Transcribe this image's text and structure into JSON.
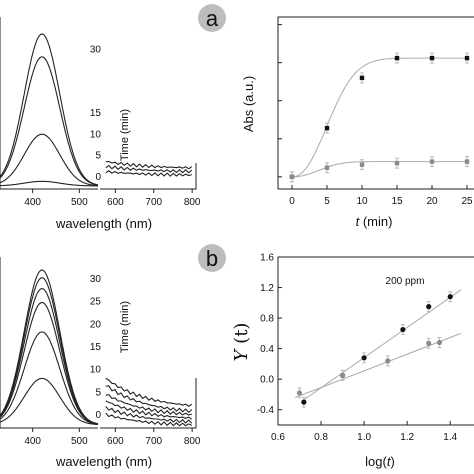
{
  "panel_labels": {
    "a": "a",
    "b": "b"
  },
  "colors": {
    "dark_series": "#111111",
    "grey_series": "#8a8a8a",
    "fit_line": "#aaaaaa",
    "badge": "#bdbdbd"
  },
  "chart_data": [
    {
      "id": "a-spectra",
      "type": "line",
      "xlabel": "wavelength (nm)",
      "xlim": [
        330,
        540
      ],
      "xticks": [
        400,
        500
      ],
      "ylim": [
        0,
        1
      ],
      "peak_wavelength": 420,
      "series": [
        {
          "amplitude": 1.0
        },
        {
          "amplitude": 0.85
        },
        {
          "amplitude": 0.34
        },
        {
          "amplitude": 0.03
        }
      ]
    },
    {
      "id": "a-inset",
      "type": "line",
      "xlim": [
        560,
        810
      ],
      "xticks": [
        600,
        700,
        800
      ],
      "ylabel": "Time (min)",
      "ylim": [
        -3,
        33
      ],
      "yticks": [
        0,
        5,
        10,
        15,
        20,
        25,
        30
      ],
      "ytick_labels": [
        "0",
        "5",
        "10",
        "15",
        "",
        "",
        "30"
      ],
      "series": [
        {
          "start": 3.5,
          "end": 1.8
        },
        {
          "start": 2.3,
          "end": 1.0
        },
        {
          "start": 1.1,
          "end": 0.2
        }
      ]
    },
    {
      "id": "a-kinetics",
      "type": "scatter",
      "xlabel_italic": "t",
      "xlabel_unit": " (min)",
      "ylabel": "Abs (a.u.)",
      "xlim": [
        -2,
        26
      ],
      "xticks": [
        0,
        5,
        10,
        15,
        20,
        25
      ],
      "xtick_labels": [
        "0",
        "5",
        "10",
        "15",
        "20",
        "25"
      ],
      "ylim": [
        0.02,
        1.15
      ],
      "yticks": [
        0.1,
        0.35,
        0.6,
        0.85,
        1.1
      ],
      "series": [
        {
          "x": [
            0,
            5,
            10,
            15,
            20,
            25
          ],
          "y": [
            0.1,
            0.42,
            0.75,
            0.88,
            0.88,
            0.88
          ],
          "style": "dark"
        },
        {
          "x": [
            0,
            5,
            10,
            15,
            20,
            25
          ],
          "y": [
            0.1,
            0.16,
            0.18,
            0.19,
            0.2,
            0.2
          ],
          "style": "grey"
        }
      ]
    },
    {
      "id": "b-spectra",
      "type": "line",
      "xlabel": "wavelength (nm)",
      "xlim": [
        330,
        540
      ],
      "xticks": [
        400,
        500
      ],
      "ylim": [
        0,
        1
      ],
      "peak_wavelength": 420,
      "series": [
        {
          "amplitude": 1.0
        },
        {
          "amplitude": 0.95
        },
        {
          "amplitude": 0.88
        },
        {
          "amplitude": 0.79
        },
        {
          "amplitude": 0.6
        },
        {
          "amplitude": 0.3
        }
      ]
    },
    {
      "id": "b-inset",
      "type": "line",
      "xlim": [
        560,
        810
      ],
      "xticks": [
        600,
        700,
        800
      ],
      "ylabel": "Time (min)",
      "ylim": [
        -3,
        33
      ],
      "yticks": [
        0,
        5,
        10,
        15,
        20,
        25,
        30
      ],
      "ytick_labels": [
        "0",
        "5",
        "10",
        "15",
        "20",
        "25",
        "30"
      ],
      "series": [
        {
          "start": 8.0,
          "end": 1.2
        },
        {
          "start": 6.5,
          "end": 0.0
        },
        {
          "start": 4.5,
          "end": -0.6
        },
        {
          "start": 3.0,
          "end": -1.3
        },
        {
          "start": 1.5,
          "end": -2.0
        },
        {
          "start": 0.0,
          "end": -2.6
        }
      ]
    },
    {
      "id": "b-log",
      "type": "scatter",
      "annotation": "200 ppm",
      "xlabel_prefix": "log(",
      "xlabel_italic": "t",
      "xlabel_suffix": ")",
      "ylabel_italic": "Y",
      "ylabel_suffix": " (t)",
      "xlim": [
        0.6,
        1.45
      ],
      "xticks": [
        0.6,
        0.8,
        1.0,
        1.2,
        1.4
      ],
      "xtick_labels": [
        "0.6",
        "0.8",
        "1.0",
        "1.2",
        "1.4"
      ],
      "ylim": [
        -0.6,
        1.6
      ],
      "yticks": [
        -0.4,
        0.0,
        0.4,
        0.8,
        1.2,
        1.6
      ],
      "ytick_labels": [
        "-0.4",
        "0.0",
        "0.4",
        "0.8",
        "1.2",
        "1.6"
      ],
      "series": [
        {
          "x": [
            0.72,
            0.9,
            1.0,
            1.18,
            1.3,
            1.4
          ],
          "y": [
            -0.3,
            0.05,
            0.28,
            0.65,
            0.95,
            1.08
          ],
          "style": "dark"
        },
        {
          "x": [
            0.7,
            0.9,
            1.11,
            1.3,
            1.35
          ],
          "y": [
            -0.18,
            0.05,
            0.24,
            0.47,
            0.48
          ],
          "style": "grey"
        }
      ],
      "fits": [
        {
          "x": [
            0.72,
            1.45
          ],
          "y": [
            -0.27,
            1.17
          ]
        },
        {
          "x": [
            0.68,
            1.45
          ],
          "y": [
            -0.24,
            0.6
          ]
        }
      ]
    }
  ]
}
